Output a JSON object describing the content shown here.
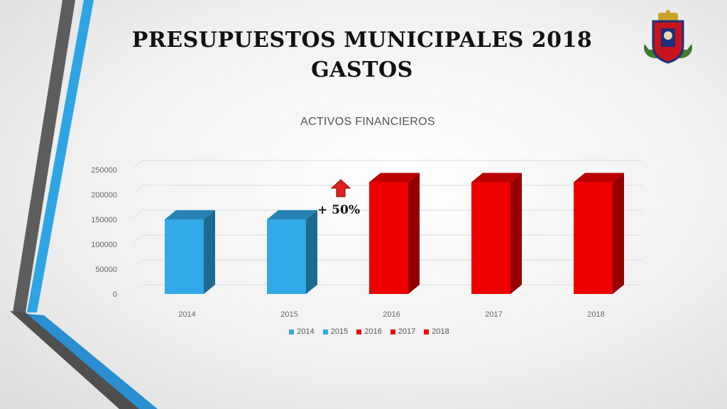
{
  "slide": {
    "title_line1": "PRESUPUESTOS MUNICIPALES 2018",
    "title_line2": "GASTOS",
    "logo_icon": "municipal-coat-of-arms-icon"
  },
  "colors": {
    "blue": "#31a9e8",
    "red": "#ee0000",
    "accent_dark": "#5a5a5a",
    "accent_blue": "#2a9fdc"
  },
  "annotation": {
    "text": "+ 50%",
    "icon": "up-arrow-icon"
  },
  "chart_data": {
    "type": "bar",
    "title": "ACTIVOS FINANCIEROS",
    "xlabel": "",
    "ylabel": "",
    "categories": [
      "2014",
      "2015",
      "2016",
      "2017",
      "2018"
    ],
    "values": [
      150000,
      150000,
      225000,
      225000,
      225000
    ],
    "bar_colors": [
      "#31a9e8",
      "#31a9e8",
      "#ee0000",
      "#ee0000",
      "#ee0000"
    ],
    "ylim": [
      0,
      250000
    ],
    "yticks": [
      "0",
      "50000",
      "100000",
      "150000",
      "200000",
      "250000"
    ],
    "grid": true,
    "legend_position": "bottom",
    "legend": [
      {
        "label": "2014",
        "color": "#31a9e8"
      },
      {
        "label": "2015",
        "color": "#31a9e8"
      },
      {
        "label": "2016",
        "color": "#ee0000"
      },
      {
        "label": "2017",
        "color": "#ee0000"
      },
      {
        "label": "2018",
        "color": "#ee0000"
      }
    ]
  }
}
